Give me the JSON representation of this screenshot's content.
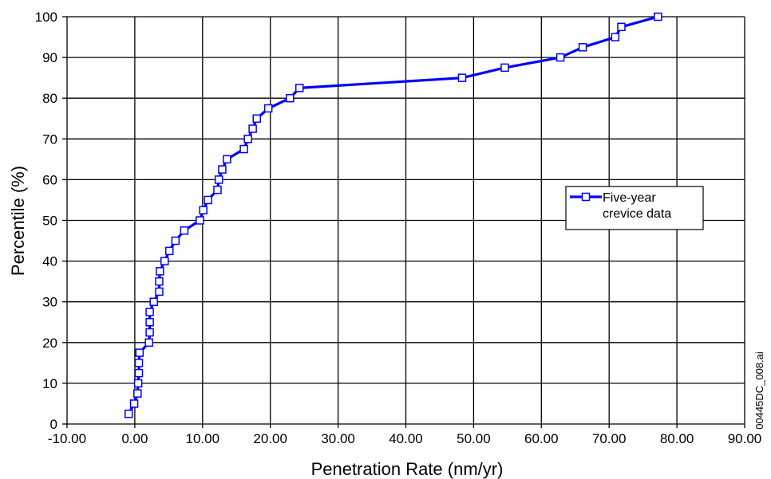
{
  "chart_data": {
    "type": "line",
    "xlabel": "Penetration Rate (nm/yr)",
    "ylabel": "Percentile (%)",
    "xlim": [
      -10,
      90
    ],
    "ylim": [
      0,
      100
    ],
    "x_ticks": [
      "-10.00",
      "0.00",
      "10.00",
      "20.00",
      "30.00",
      "40.00",
      "50.00",
      "60.00",
      "70.00",
      "80.00",
      "90.00"
    ],
    "y_ticks": [
      "0",
      "10",
      "20",
      "30",
      "40",
      "50",
      "60",
      "70",
      "80",
      "90",
      "100"
    ],
    "grid": true,
    "legend_position": "right",
    "series": [
      {
        "name": "Five-year crevice data",
        "legend_lines": [
          "Five-year",
          "crevice data"
        ],
        "color": "#0000ff",
        "marker": "open-square",
        "points": [
          [
            -0.9,
            2.5
          ],
          [
            -0.1,
            5.0
          ],
          [
            0.4,
            7.5
          ],
          [
            0.5,
            10.0
          ],
          [
            0.6,
            12.5
          ],
          [
            0.6,
            15.0
          ],
          [
            0.7,
            17.5
          ],
          [
            2.1,
            20.0
          ],
          [
            2.2,
            22.5
          ],
          [
            2.2,
            25.0
          ],
          [
            2.2,
            27.5
          ],
          [
            2.8,
            30.0
          ],
          [
            3.6,
            32.5
          ],
          [
            3.6,
            35.0
          ],
          [
            3.7,
            37.5
          ],
          [
            4.4,
            40.0
          ],
          [
            5.1,
            42.5
          ],
          [
            6.0,
            45.0
          ],
          [
            7.3,
            47.5
          ],
          [
            9.6,
            50.0
          ],
          [
            10.1,
            52.5
          ],
          [
            10.8,
            55.0
          ],
          [
            12.2,
            57.5
          ],
          [
            12.4,
            60.0
          ],
          [
            12.9,
            62.5
          ],
          [
            13.6,
            65.0
          ],
          [
            16.1,
            67.5
          ],
          [
            16.7,
            70.0
          ],
          [
            17.4,
            72.5
          ],
          [
            18.0,
            75.0
          ],
          [
            19.7,
            77.5
          ],
          [
            22.9,
            80.0
          ],
          [
            24.3,
            82.5
          ],
          [
            48.3,
            85.0
          ],
          [
            54.6,
            87.5
          ],
          [
            62.8,
            90.0
          ],
          [
            66.1,
            92.5
          ],
          [
            70.9,
            95.0
          ],
          [
            71.8,
            97.5
          ],
          [
            77.2,
            100.0
          ]
        ]
      }
    ]
  },
  "figure_id": "00445DC_008.ai"
}
